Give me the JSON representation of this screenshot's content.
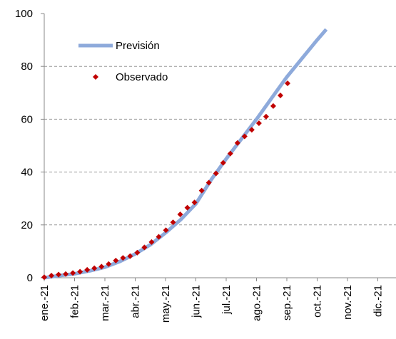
{
  "chart_data": {
    "type": "line",
    "xlim": [
      0,
      11.6
    ],
    "xticks": [
      {
        "value": 0,
        "label": "ene.-21"
      },
      {
        "value": 1,
        "label": "feb.-21"
      },
      {
        "value": 2,
        "label": "mar.-21"
      },
      {
        "value": 3,
        "label": "abr.-21"
      },
      {
        "value": 4,
        "label": "may.-21"
      },
      {
        "value": 5,
        "label": "jun.-21"
      },
      {
        "value": 6,
        "label": "jul.-21"
      },
      {
        "value": 7,
        "label": "ago.-21"
      },
      {
        "value": 8,
        "label": "sep.-21"
      },
      {
        "value": 9,
        "label": "oct.-21"
      },
      {
        "value": 10,
        "label": "nov.-21"
      },
      {
        "value": 11,
        "label": "dic.-21"
      }
    ],
    "ylim": [
      0,
      100
    ],
    "yticks": [
      0,
      20,
      40,
      60,
      80,
      100
    ],
    "grid": true,
    "legend": "upper-left",
    "series": [
      {
        "name": "Previsión",
        "color": "#8eaadb",
        "style": "line",
        "x": [
          0,
          0.5,
          1,
          1.5,
          2,
          2.5,
          3,
          3.5,
          4,
          4.5,
          5,
          5.5,
          6,
          6.5,
          7,
          7.5,
          8,
          8.5,
          9,
          9.3
        ],
        "values": [
          0,
          0.8,
          1.5,
          2.6,
          4,
          6.2,
          9,
          12.5,
          17,
          22,
          28,
          37,
          45,
          52.5,
          60,
          68,
          76,
          83,
          90,
          94
        ]
      },
      {
        "name": "Observado",
        "color": "#c00000",
        "style": "markers",
        "x": [
          0,
          0.236,
          0.472,
          0.708,
          0.944,
          1.18,
          1.416,
          1.652,
          1.888,
          2.124,
          2.36,
          2.596,
          2.832,
          3.068,
          3.304,
          3.54,
          3.776,
          4.012,
          4.248,
          4.484,
          4.72,
          4.956,
          5.192,
          5.428,
          5.664,
          5.9,
          6.136,
          6.372,
          6.608,
          6.844,
          7.08,
          7.316,
          7.552,
          7.788,
          8.024
        ],
        "values": [
          0.2,
          0.8,
          1.2,
          1.4,
          1.8,
          2.3,
          3,
          3.6,
          4.2,
          5.2,
          6.5,
          7.5,
          8.2,
          9.5,
          11.5,
          13.5,
          15.5,
          18,
          21,
          24,
          26.5,
          28.5,
          33,
          36,
          39.5,
          43.5,
          47,
          51,
          53.5,
          56,
          58.5,
          61,
          65,
          69,
          73.6
        ]
      }
    ]
  }
}
